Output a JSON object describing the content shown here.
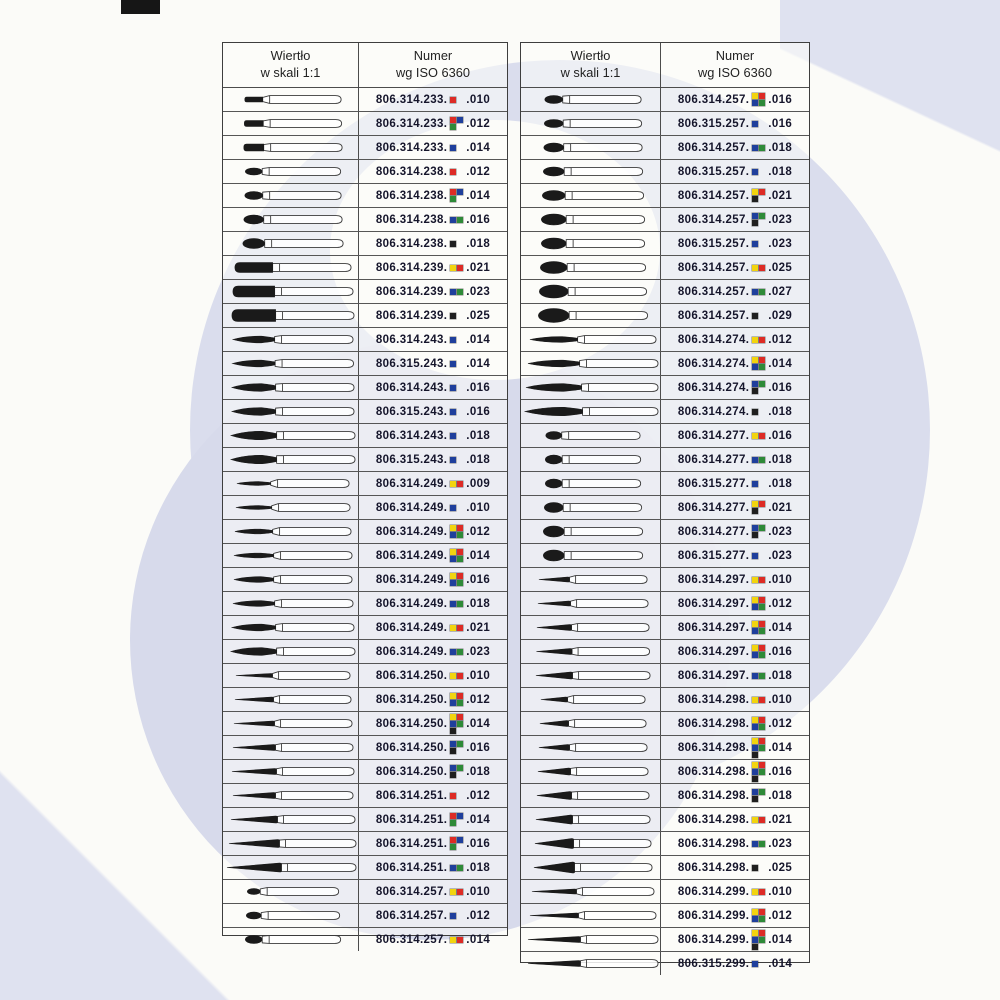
{
  "header": {
    "col1_l1": "Wiertło",
    "col1_l2": "w skali 1:1",
    "col2_l1": "Numer",
    "col2_l2": "wg ISO 6360"
  },
  "grit_colors": {
    "y": "#f2d40e",
    "r": "#dd2b25",
    "b": "#1f3f9c",
    "g": "#2e8a38",
    "k": "#1f1f1f"
  },
  "tables": [
    {
      "id": "left",
      "rows": [
        {
          "num": "806.314.233.",
          "grits": "r",
          "size": ".010",
          "shape": "cylinder",
          "headL": 18,
          "headH": 5
        },
        {
          "num": "806.314.233.",
          "grits": "rb/g",
          "size": ".012",
          "shape": "cylinder",
          "headL": 19,
          "headH": 6
        },
        {
          "num": "806.314.233.",
          "grits": "b",
          "size": ".014",
          "shape": "cylinder",
          "headL": 20,
          "headH": 7
        },
        {
          "num": "806.314.238.",
          "grits": "r",
          "size": ".012",
          "shape": "pear",
          "headL": 17,
          "headH": 7
        },
        {
          "num": "806.314.238.",
          "grits": "rb/g",
          "size": ".014",
          "shape": "pear",
          "headL": 18,
          "headH": 8
        },
        {
          "num": "806.314.238.",
          "grits": "bg",
          "size": ".016",
          "shape": "pear",
          "headL": 20,
          "headH": 9
        },
        {
          "num": "806.314.238.",
          "grits": "k",
          "size": ".018",
          "shape": "pear",
          "headL": 22,
          "headH": 10
        },
        {
          "num": "806.314.239.",
          "grits": "yr",
          "size": ".021",
          "shape": "capsule",
          "headL": 38,
          "headH": 10
        },
        {
          "num": "806.314.239.",
          "grits": "bg",
          "size": ".023",
          "shape": "capsule",
          "headL": 42,
          "headH": 11
        },
        {
          "num": "806.314.239.",
          "grits": "k",
          "size": ".025",
          "shape": "capsule",
          "headL": 44,
          "headH": 12
        },
        {
          "num": "806.314.243.",
          "grits": "b",
          "size": ".014",
          "shape": "flame",
          "headL": 42,
          "headH": 7
        },
        {
          "num": "806.315.243.",
          "grits": "b",
          "size": ".014",
          "shape": "flame",
          "headL": 43,
          "headH": 7
        },
        {
          "num": "806.314.243.",
          "grits": "b",
          "size": ".016",
          "shape": "flame",
          "headL": 44,
          "headH": 8
        },
        {
          "num": "806.315.243.",
          "grits": "b",
          "size": ".016",
          "shape": "flame",
          "headL": 44,
          "headH": 8
        },
        {
          "num": "806.314.243.",
          "grits": "b",
          "size": ".018",
          "shape": "flame",
          "headL": 46,
          "headH": 9
        },
        {
          "num": "806.315.243.",
          "grits": "b",
          "size": ".018",
          "shape": "flame",
          "headL": 46,
          "headH": 9
        },
        {
          "num": "806.314.249.",
          "grits": "yr",
          "size": ".009",
          "shape": "flame",
          "headL": 34,
          "headH": 4
        },
        {
          "num": "806.314.249.",
          "grits": "b",
          "size": ".010",
          "shape": "flame",
          "headL": 36,
          "headH": 4
        },
        {
          "num": "806.314.249.",
          "grits": "yr/bg",
          "size": ".012",
          "shape": "flame",
          "headL": 38,
          "headH": 5
        },
        {
          "num": "806.314.249.",
          "grits": "yr/bg",
          "size": ".014",
          "shape": "flame",
          "headL": 40,
          "headH": 5
        },
        {
          "num": "806.314.249.",
          "grits": "yr/bg",
          "size": ".016",
          "shape": "flame",
          "headL": 40,
          "headH": 6
        },
        {
          "num": "806.314.249.",
          "grits": "bg",
          "size": ".018",
          "shape": "flame",
          "headL": 42,
          "headH": 6
        },
        {
          "num": "806.314.249.",
          "grits": "yr",
          "size": ".021",
          "shape": "flame",
          "headL": 44,
          "headH": 7
        },
        {
          "num": "806.314.249.",
          "grits": "bg",
          "size": ".023",
          "shape": "flame",
          "headL": 46,
          "headH": 8
        },
        {
          "num": "806.314.250.",
          "grits": "yr",
          "size": ".010",
          "shape": "taper",
          "headL": 36,
          "headH": 4
        },
        {
          "num": "806.314.250.",
          "grits": "yr/bg",
          "size": ".012",
          "shape": "taper",
          "headL": 38,
          "headH": 5
        },
        {
          "num": "806.314.250.",
          "grits": "yr/bg/k",
          "size": ".014",
          "shape": "taper",
          "headL": 40,
          "headH": 5
        },
        {
          "num": "806.314.250.",
          "grits": "bg/k",
          "size": ".016",
          "shape": "taper",
          "headL": 42,
          "headH": 6
        },
        {
          "num": "806.314.250.",
          "grits": "bg/k",
          "size": ".018",
          "shape": "taper",
          "headL": 44,
          "headH": 6
        },
        {
          "num": "806.314.251.",
          "grits": "r",
          "size": ".012",
          "shape": "taper",
          "headL": 42,
          "headH": 6
        },
        {
          "num": "806.314.251.",
          "grits": "rb/g",
          "size": ".014",
          "shape": "taper",
          "headL": 46,
          "headH": 7
        },
        {
          "num": "806.314.251.",
          "grits": "rb/g",
          "size": ".016",
          "shape": "taper",
          "headL": 50,
          "headH": 8
        },
        {
          "num": "806.314.251.",
          "grits": "bg",
          "size": ".018",
          "shape": "taper",
          "headL": 54,
          "headH": 9
        },
        {
          "num": "806.314.257.",
          "grits": "yr",
          "size": ".010",
          "shape": "egg",
          "headL": 13,
          "headH": 6
        },
        {
          "num": "806.314.257.",
          "grits": "b",
          "size": ".012",
          "shape": "egg",
          "headL": 15,
          "headH": 7
        },
        {
          "num": "806.314.257.",
          "grits": "yr",
          "size": ".014",
          "shape": "egg",
          "headL": 17,
          "headH": 8
        }
      ]
    },
    {
      "id": "right",
      "rows": [
        {
          "num": "806.314.257.",
          "grits": "yr/bg",
          "size": ".016",
          "shape": "egg",
          "headL": 18,
          "headH": 8
        },
        {
          "num": "806.315.257.",
          "grits": "b",
          "size": ".016",
          "shape": "egg",
          "headL": 19,
          "headH": 8
        },
        {
          "num": "806.314.257.",
          "grits": "bg",
          "size": ".018",
          "shape": "egg",
          "headL": 20,
          "headH": 9
        },
        {
          "num": "806.315.257.",
          "grits": "b",
          "size": ".018",
          "shape": "egg",
          "headL": 21,
          "headH": 9
        },
        {
          "num": "806.314.257.",
          "grits": "yr/k",
          "size": ".021",
          "shape": "egg",
          "headL": 23,
          "headH": 10
        },
        {
          "num": "806.314.257.",
          "grits": "bg/k",
          "size": ".023",
          "shape": "egg",
          "headL": 25,
          "headH": 11
        },
        {
          "num": "806.315.257.",
          "grits": "b",
          "size": ".023",
          "shape": "egg",
          "headL": 25,
          "headH": 11
        },
        {
          "num": "806.314.257.",
          "grits": "yr",
          "size": ".025",
          "shape": "egg",
          "headL": 27,
          "headH": 12
        },
        {
          "num": "806.314.257.",
          "grits": "bg",
          "size": ".027",
          "shape": "egg",
          "headL": 29,
          "headH": 13
        },
        {
          "num": "806.314.257.",
          "grits": "k",
          "size": ".029",
          "shape": "egg",
          "headL": 31,
          "headH": 14
        },
        {
          "num": "806.314.274.",
          "grits": "yr",
          "size": ".012",
          "shape": "flame",
          "headL": 48,
          "headH": 6
        },
        {
          "num": "806.314.274.",
          "grits": "yr/bg",
          "size": ".014",
          "shape": "flame",
          "headL": 52,
          "headH": 7
        },
        {
          "num": "806.314.274.",
          "grits": "bg/k",
          "size": ".016",
          "shape": "flame",
          "headL": 56,
          "headH": 8
        },
        {
          "num": "806.314.274.",
          "grits": "k",
          "size": ".018",
          "shape": "flame",
          "headL": 58,
          "headH": 9
        },
        {
          "num": "806.314.277.",
          "grits": "yr",
          "size": ".016",
          "shape": "egg",
          "headL": 16,
          "headH": 8
        },
        {
          "num": "806.314.277.",
          "grits": "bg",
          "size": ".018",
          "shape": "egg",
          "headL": 17,
          "headH": 9
        },
        {
          "num": "806.315.277.",
          "grits": "b",
          "size": ".018",
          "shape": "egg",
          "headL": 17,
          "headH": 9
        },
        {
          "num": "806.314.277.",
          "grits": "yr/k",
          "size": ".021",
          "shape": "egg",
          "headL": 19,
          "headH": 10
        },
        {
          "num": "806.314.277.",
          "grits": "bg/k",
          "size": ".023",
          "shape": "egg",
          "headL": 21,
          "headH": 11
        },
        {
          "num": "806.315.277.",
          "grits": "b",
          "size": ".023",
          "shape": "egg",
          "headL": 21,
          "headH": 11
        },
        {
          "num": "806.314.297.",
          "grits": "yr",
          "size": ".010",
          "shape": "taper",
          "headL": 30,
          "headH": 5
        },
        {
          "num": "806.314.297.",
          "grits": "yr/bg",
          "size": ".012",
          "shape": "taper",
          "headL": 32,
          "headH": 5
        },
        {
          "num": "806.314.297.",
          "grits": "yr/bg",
          "size": ".014",
          "shape": "taper",
          "headL": 34,
          "headH": 6
        },
        {
          "num": "806.314.297.",
          "grits": "yr/bg",
          "size": ".016",
          "shape": "taper",
          "headL": 35,
          "headH": 6
        },
        {
          "num": "806.314.297.",
          "grits": "bg",
          "size": ".018",
          "shape": "taper",
          "headL": 36,
          "headH": 7
        },
        {
          "num": "806.314.298.",
          "grits": "yr",
          "size": ".010",
          "shape": "taper",
          "headL": 26,
          "headH": 5
        },
        {
          "num": "806.314.298.",
          "grits": "yr/bg",
          "size": ".012",
          "shape": "taper",
          "headL": 28,
          "headH": 6
        },
        {
          "num": "806.314.298.",
          "grits": "yr/bg/k",
          "size": ".014",
          "shape": "taper",
          "headL": 30,
          "headH": 6
        },
        {
          "num": "806.314.298.",
          "grits": "yr/bg/k",
          "size": ".016",
          "shape": "taper",
          "headL": 32,
          "headH": 7
        },
        {
          "num": "806.314.298.",
          "grits": "bg/k",
          "size": ".018",
          "shape": "taper",
          "headL": 34,
          "headH": 8
        },
        {
          "num": "806.314.298.",
          "grits": "yr",
          "size": ".021",
          "shape": "taper",
          "headL": 36,
          "headH": 9
        },
        {
          "num": "806.314.298.",
          "grits": "bg",
          "size": ".023",
          "shape": "taper",
          "headL": 38,
          "headH": 10
        },
        {
          "num": "806.314.298.",
          "grits": "k",
          "size": ".025",
          "shape": "taper",
          "headL": 40,
          "headH": 11
        },
        {
          "num": "806.314.299.",
          "grits": "yr",
          "size": ".010",
          "shape": "taper",
          "headL": 44,
          "headH": 5
        },
        {
          "num": "806.314.299.",
          "grits": "yr/bg",
          "size": ".012",
          "shape": "taper",
          "headL": 48,
          "headH": 5
        },
        {
          "num": "806.314.299.",
          "grits": "yr/bg/k",
          "size": ".014",
          "shape": "taper",
          "headL": 52,
          "headH": 6
        },
        {
          "num": "806.315.299.",
          "grits": "b",
          "size": ".014",
          "shape": "taper",
          "headL": 52,
          "headH": 6
        }
      ]
    }
  ]
}
